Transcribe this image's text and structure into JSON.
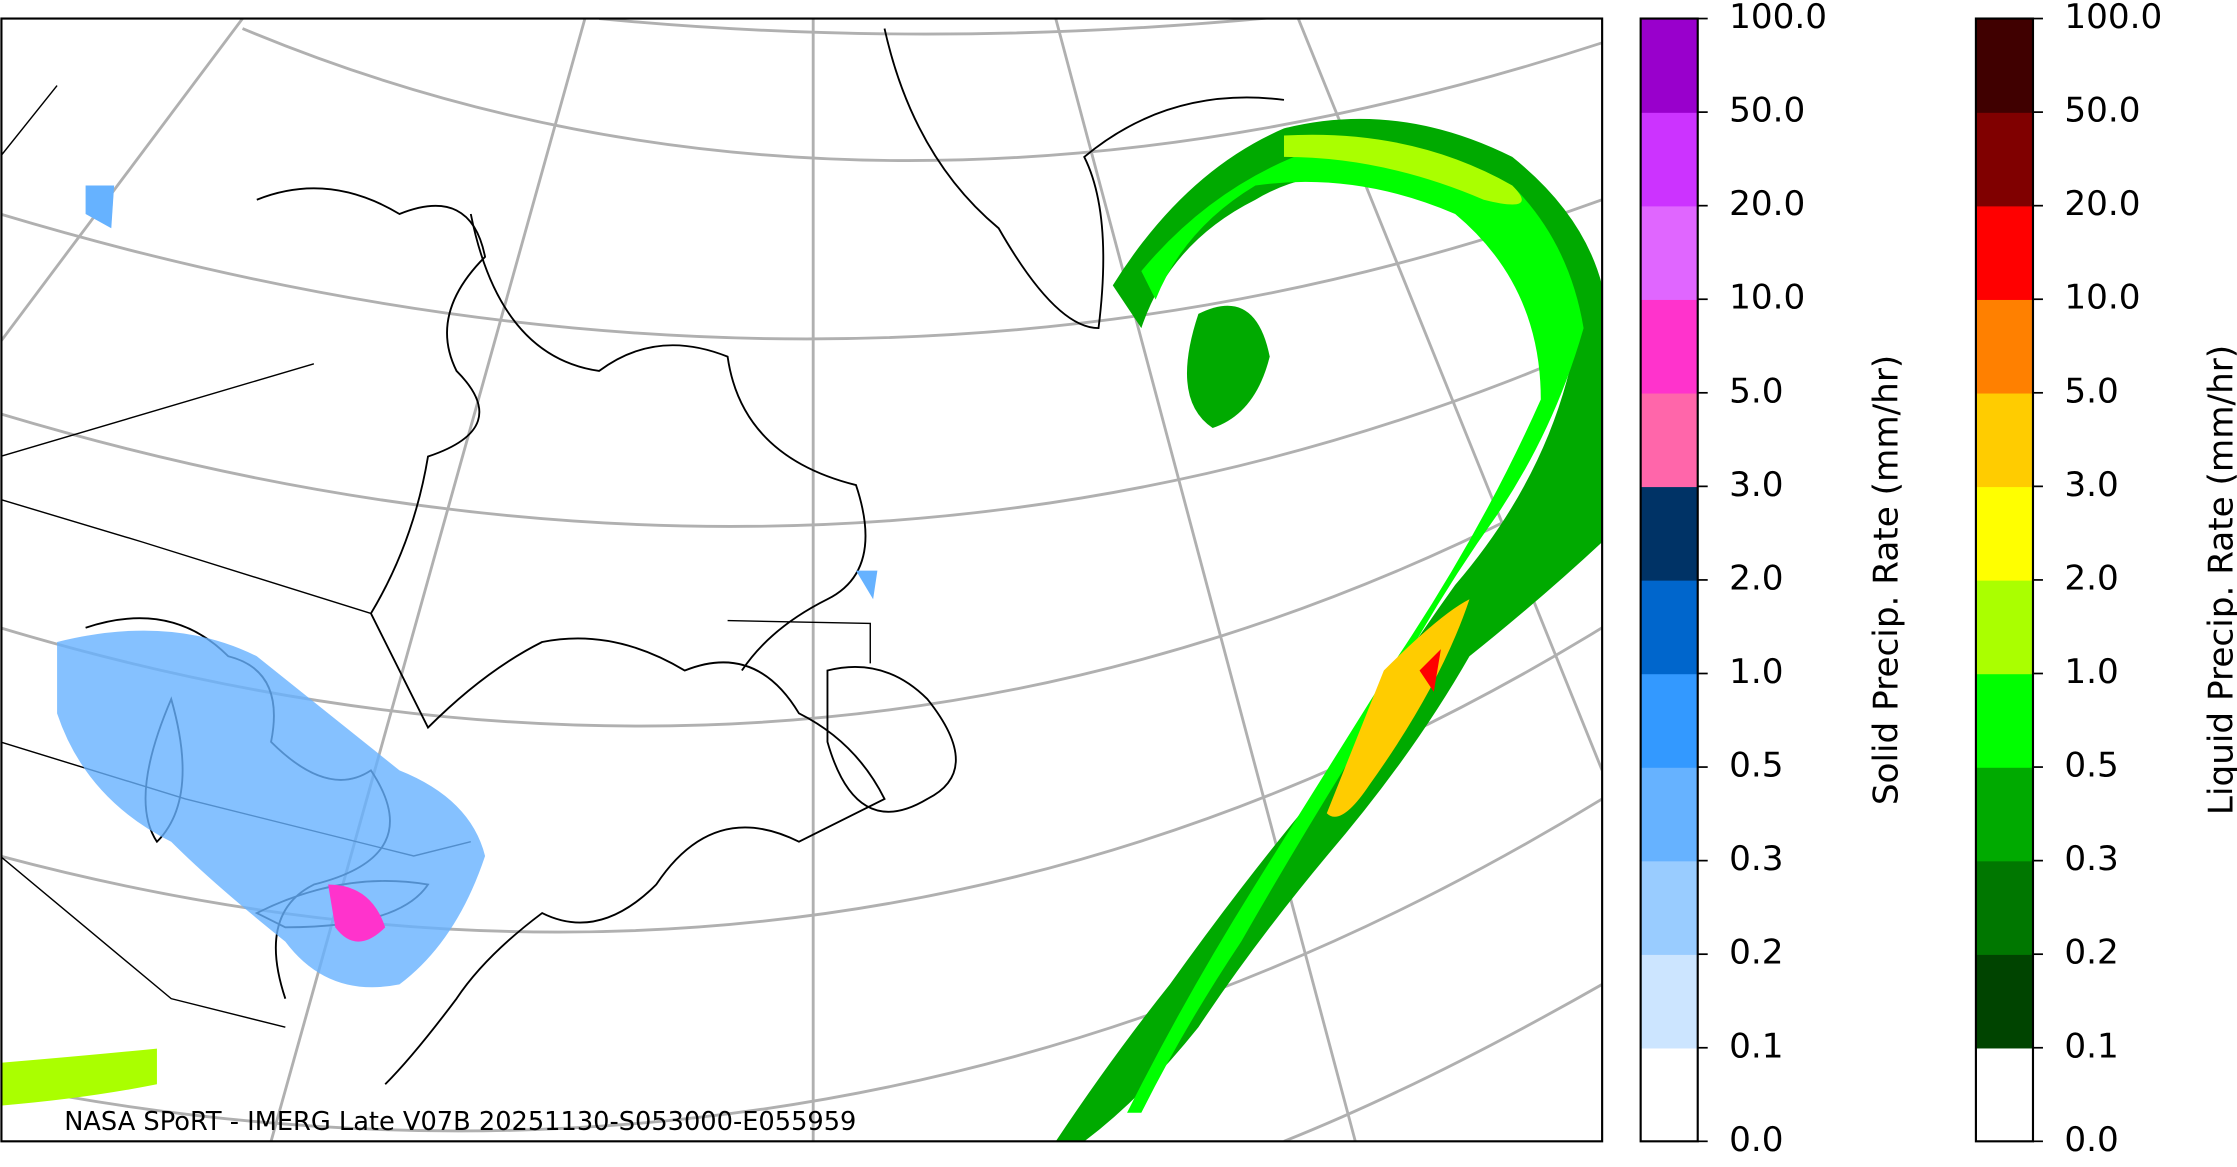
{
  "map": {
    "caption": "NASA SPoRT - IMERG Late V07B 20251130-S053000-E055959",
    "colorbars": [
      {
        "label": "Solid Precip. Rate (mm/hr)",
        "ticks": [
          {
            "value": 0,
            "label": "0.0"
          },
          0.1,
          0.2,
          0.3,
          0.5,
          {
            "value": 1,
            "label": "1.0"
          },
          {
            "value": 2,
            "label": "2.0"
          },
          {
            "value": 3,
            "label": "3.0"
          },
          {
            "value": 5,
            "label": "5.0"
          },
          {
            "value": 10,
            "label": "10.0"
          },
          {
            "value": 20,
            "label": "20.0"
          },
          {
            "value": 50,
            "label": "50.0"
          },
          {
            "value": 100,
            "label": "100.0"
          }
        ],
        "colors": [
          "#ffffff",
          "#cce5ff",
          "#99ccff",
          "#66b2ff",
          "#3399ff",
          "#0066cc",
          "#003366",
          "#ff66aa",
          "#ff33cc",
          "#e066ff",
          "#cc33ff",
          "#9900cc"
        ]
      },
      {
        "label": "Liquid Precip. Rate (mm/hr)",
        "ticks": [
          {
            "value": 0,
            "label": "0.0"
          },
          0.1,
          0.2,
          0.3,
          0.5,
          {
            "value": 1,
            "label": "1.0"
          },
          {
            "value": 2,
            "label": "2.0"
          },
          {
            "value": 3,
            "label": "3.0"
          },
          {
            "value": 5,
            "label": "5.0"
          },
          {
            "value": 10,
            "label": "10.0"
          },
          {
            "value": 20,
            "label": "20.0"
          },
          {
            "value": 50,
            "label": "50.0"
          },
          {
            "value": 100,
            "label": "100.0"
          }
        ],
        "colors": [
          "#ffffff",
          "#004400",
          "#007700",
          "#00aa00",
          "#00ff00",
          "#aaff00",
          "#ffff00",
          "#ffcc00",
          "#ff8000",
          "#ff0000",
          "#800000",
          "#400000"
        ]
      }
    ]
  }
}
